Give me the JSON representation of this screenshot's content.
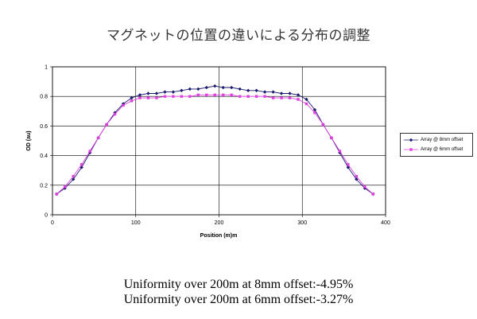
{
  "chart_data": {
    "type": "line",
    "title": "マグネットの位置の違いによる分布の調整",
    "xlabel": "Position (m)m",
    "ylabel": "OD (au)",
    "xlim": [
      0,
      400
    ],
    "ylim": [
      0,
      1
    ],
    "xticks": [
      "0",
      "100",
      "200",
      "300",
      "400"
    ],
    "yticks": [
      "0",
      "0.2",
      "0.4",
      "0.6",
      "0.8",
      "1"
    ],
    "grid": true,
    "legend_position": "right",
    "x": [
      5,
      15,
      25,
      35,
      45,
      55,
      65,
      75,
      85,
      95,
      105,
      115,
      125,
      135,
      145,
      155,
      165,
      175,
      185,
      195,
      205,
      215,
      225,
      235,
      245,
      255,
      265,
      275,
      285,
      295,
      305,
      315,
      325,
      335,
      345,
      355,
      365,
      375,
      385
    ],
    "series": [
      {
        "name": "Array @ 8mm offset",
        "color": "#1a1a6e",
        "marker": "diamond",
        "values": [
          0.14,
          0.18,
          0.24,
          0.32,
          0.42,
          0.52,
          0.61,
          0.69,
          0.75,
          0.79,
          0.81,
          0.82,
          0.82,
          0.83,
          0.83,
          0.84,
          0.85,
          0.85,
          0.86,
          0.87,
          0.86,
          0.86,
          0.85,
          0.84,
          0.84,
          0.83,
          0.83,
          0.82,
          0.82,
          0.81,
          0.78,
          0.71,
          0.61,
          0.52,
          0.42,
          0.32,
          0.24,
          0.18,
          0.14
        ]
      },
      {
        "name": "Array @ 6mm offset",
        "color": "#e040e0",
        "marker": "square",
        "values": [
          0.14,
          0.19,
          0.26,
          0.34,
          0.43,
          0.52,
          0.61,
          0.68,
          0.74,
          0.77,
          0.79,
          0.79,
          0.79,
          0.8,
          0.8,
          0.8,
          0.8,
          0.81,
          0.81,
          0.81,
          0.81,
          0.81,
          0.8,
          0.8,
          0.8,
          0.8,
          0.79,
          0.79,
          0.79,
          0.78,
          0.75,
          0.69,
          0.61,
          0.52,
          0.43,
          0.34,
          0.26,
          0.19,
          0.14
        ]
      }
    ]
  },
  "notes": [
    "Uniformity over 200m at 8mm offset:-4.95%",
    "Uniformity over 200m at 6mm offset:-3.27%"
  ]
}
